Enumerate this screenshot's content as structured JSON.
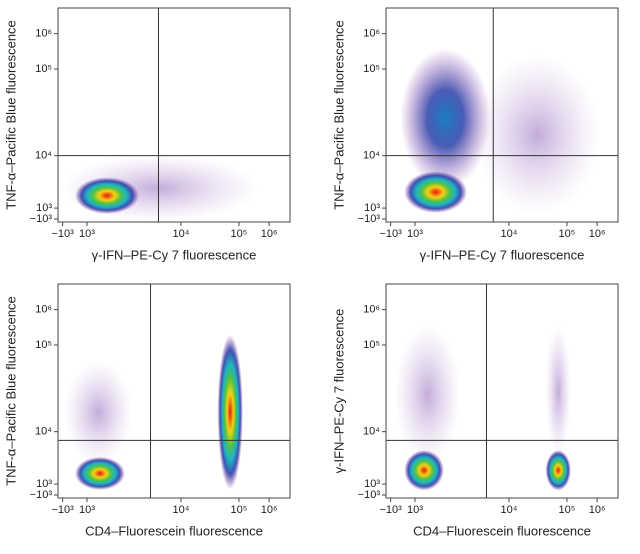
{
  "chart_data": [
    {
      "type": "density",
      "xlabel": "γ-IFN–PE-Cy 7 fluorescence",
      "ylabel": "TNF-α–Pacific Blue fluorescence",
      "xticks": [
        {
          "value": -1000,
          "label": "−10³"
        },
        {
          "value": 1000,
          "label": "10³"
        },
        {
          "value": 10000,
          "label": "10⁴"
        },
        {
          "value": 100000,
          "label": "10⁵"
        },
        {
          "value": 1000000,
          "label": "10⁶"
        }
      ],
      "yticks": [
        {
          "value": -1000,
          "label": "−10³"
        },
        {
          "value": 1000,
          "label": "10³"
        },
        {
          "value": 10000,
          "label": "10⁴"
        },
        {
          "value": 100000,
          "label": "10⁵"
        },
        {
          "value": 1000000,
          "label": "10⁶"
        }
      ],
      "gate": {
        "x": 6000,
        "y": 10000
      },
      "clusters": [
        {
          "density": "low",
          "x": [
            -800,
            300000
          ],
          "y": [
            -800,
            9000
          ]
        },
        {
          "density": "high",
          "x": [
            300,
            3500
          ],
          "y": [
            600,
            3500
          ]
        }
      ]
    },
    {
      "type": "density",
      "xlabel": "γ-IFN–PE-Cy 7 fluorescence",
      "ylabel": "TNF-α–Pacific Blue fluorescence",
      "xticks": [
        {
          "value": -1000,
          "label": "−10³"
        },
        {
          "value": 1000,
          "label": "10³"
        },
        {
          "value": 10000,
          "label": "10⁴"
        },
        {
          "value": 100000,
          "label": "10⁵"
        },
        {
          "value": 1000000,
          "label": "10⁶"
        }
      ],
      "yticks": [
        {
          "value": -1000,
          "label": "−10³"
        },
        {
          "value": 1000,
          "label": "10³"
        },
        {
          "value": 10000,
          "label": "10⁴"
        },
        {
          "value": 100000,
          "label": "10⁵"
        },
        {
          "value": 1000000,
          "label": "10⁶"
        }
      ],
      "gate": {
        "x": 7000,
        "y": 10000
      },
      "clusters": [
        {
          "density": "low",
          "x": [
            5000,
            900000
          ],
          "y": [
            500,
            200000
          ]
        },
        {
          "density": "mid",
          "x": [
            100,
            6000
          ],
          "y": [
            3000,
            300000
          ]
        },
        {
          "density": "high",
          "x": [
            400,
            3500
          ],
          "y": [
            800,
            4500
          ]
        }
      ]
    },
    {
      "type": "density",
      "xlabel": "CD4–Fluorescein fluorescence",
      "ylabel": "TNF-α–Pacific Blue fluorescence",
      "xticks": [
        {
          "value": -1000,
          "label": "−10³"
        },
        {
          "value": 1000,
          "label": "10³"
        },
        {
          "value": 10000,
          "label": "10⁴"
        },
        {
          "value": 100000,
          "label": "10⁵"
        },
        {
          "value": 1000000,
          "label": "10⁶"
        }
      ],
      "yticks": [
        {
          "value": -1000,
          "label": "−10³"
        },
        {
          "value": 1000,
          "label": "10³"
        },
        {
          "value": 10000,
          "label": "10⁴"
        },
        {
          "value": 100000,
          "label": "10⁵"
        },
        {
          "value": 1000000,
          "label": "10⁶"
        }
      ],
      "gate": {
        "x": 5000,
        "y": 7000
      },
      "clusters": [
        {
          "density": "low",
          "x": [
            -500,
            3000
          ],
          "y": [
            3000,
            60000
          ]
        },
        {
          "density": "high",
          "x": [
            300,
            2500
          ],
          "y": [
            600,
            3000
          ]
        },
        {
          "density": "high",
          "x": [
            50000,
            100000
          ],
          "y": [
            700,
            150000
          ]
        }
      ]
    },
    {
      "type": "density",
      "xlabel": "CD4–Fluorescein fluorescence",
      "ylabel": "γ-IFN–PE-Cy 7 fluorescence",
      "xticks": [
        {
          "value": -1000,
          "label": "−10³"
        },
        {
          "value": 1000,
          "label": "10³"
        },
        {
          "value": 10000,
          "label": "10⁴"
        },
        {
          "value": 100000,
          "label": "10⁵"
        },
        {
          "value": 1000000,
          "label": "10⁶"
        }
      ],
      "yticks": [
        {
          "value": -1000,
          "label": "−10³"
        },
        {
          "value": 1000,
          "label": "10³"
        },
        {
          "value": 10000,
          "label": "10⁴"
        },
        {
          "value": 100000,
          "label": "10⁵"
        },
        {
          "value": 1000000,
          "label": "10⁶"
        }
      ],
      "gate": {
        "x": 6000,
        "y": 7000
      },
      "clusters": [
        {
          "density": "low",
          "x": [
            -300,
            3000
          ],
          "y": [
            3000,
            300000
          ]
        },
        {
          "density": "low",
          "x": [
            50000,
            100000
          ],
          "y": [
            4000,
            300000
          ]
        },
        {
          "density": "high",
          "x": [
            400,
            2000
          ],
          "y": [
            500,
            4000
          ]
        },
        {
          "density": "high",
          "x": [
            50000,
            100000
          ],
          "y": [
            500,
            4000
          ]
        }
      ]
    }
  ]
}
